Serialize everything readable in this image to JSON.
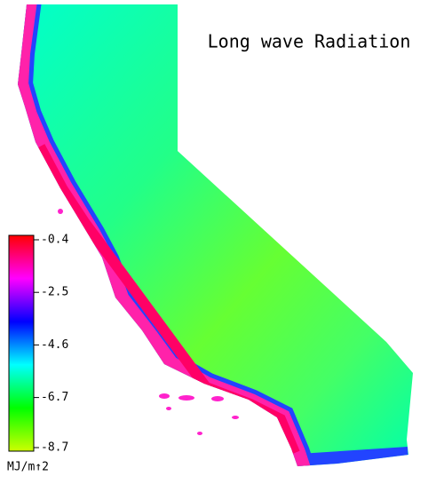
{
  "title": "Long wave Radiation",
  "colorbar": {
    "ticks": [
      -0.4,
      -2.5,
      -4.6,
      -6.7,
      -8.7
    ],
    "unit": "MJ/m↑2",
    "colors": [
      "#ff0000",
      "#ff00ff",
      "#0000ff",
      "#00ffff",
      "#00ff00",
      "#ccff00"
    ]
  }
}
